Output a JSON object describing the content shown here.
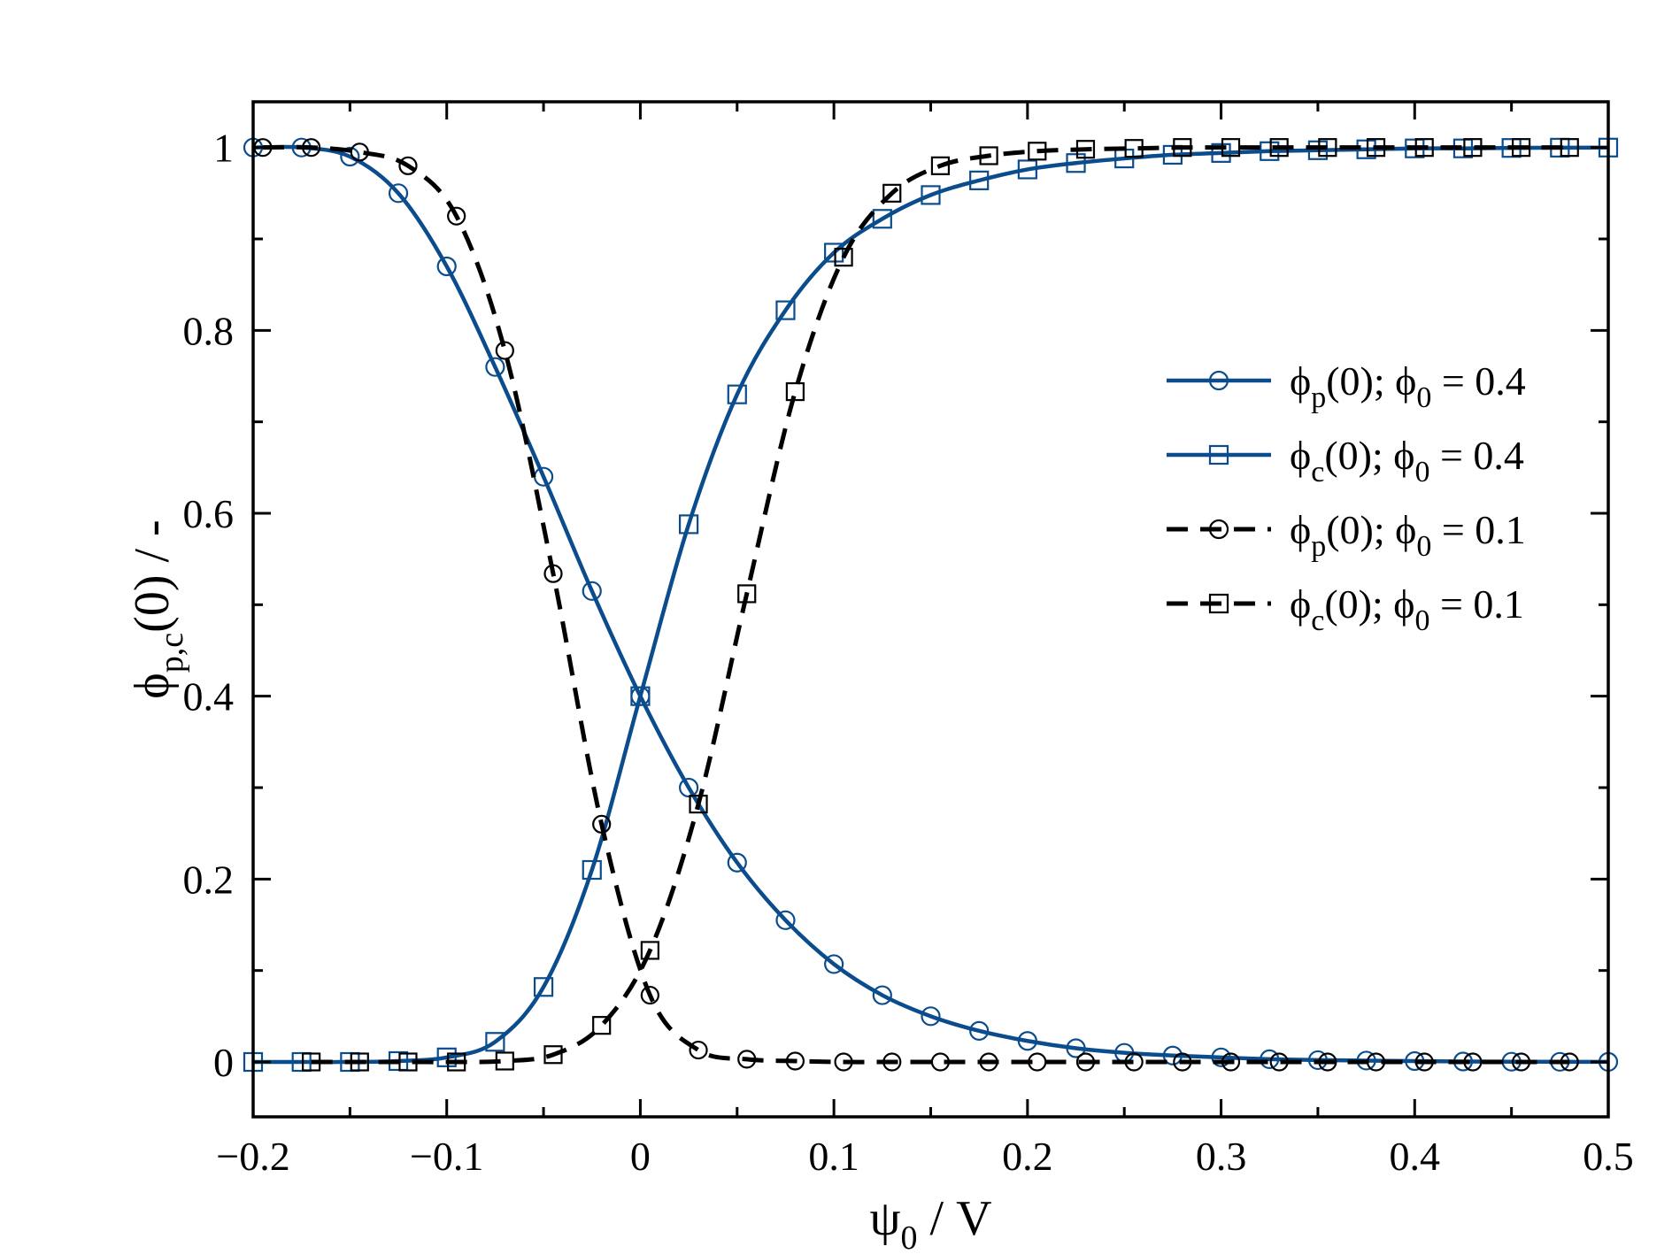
{
  "chart_data": {
    "type": "line",
    "xlabel": {
      "main": "ψ",
      "sub": "0",
      "tail": " / V"
    },
    "ylabel": {
      "main": "ϕ",
      "sub": "p,c",
      "tail": "(0) / -"
    },
    "xlim": [
      -0.2,
      0.5
    ],
    "ylim": [
      -0.06,
      1.05
    ],
    "xticks": [
      -0.2,
      -0.1,
      0,
      0.1,
      0.2,
      0.3,
      0.4,
      0.5
    ],
    "xtick_labels": [
      "−0.2",
      "−0.1",
      "0",
      "0.1",
      "0.2",
      "0.3",
      "0.4",
      "0.5"
    ],
    "yticks": [
      0,
      0.2,
      0.4,
      0.6,
      0.8,
      1
    ],
    "ytick_labels": [
      "0",
      "0.2",
      "0.4",
      "0.6",
      "0.8",
      "1"
    ],
    "grid": false,
    "legend_position": "right, upper-middle",
    "series": [
      {
        "name": "ϕp(0); ϕ0 = 0.4",
        "legend": {
          "a": "ϕ",
          "a_sub": "p",
          "b": "(0); ϕ",
          "b_sub": "0",
          "c": " = 0.4"
        },
        "color": "#0b4c8c",
        "line": "solid",
        "marker": "circle",
        "x": [
          -0.2,
          -0.175,
          -0.15,
          -0.125,
          -0.1,
          -0.075,
          -0.05,
          -0.025,
          0,
          0.025,
          0.05,
          0.075,
          0.1,
          0.125,
          0.15,
          0.175,
          0.2,
          0.225,
          0.25,
          0.275,
          0.3,
          0.325,
          0.35,
          0.375,
          0.4,
          0.425,
          0.45,
          0.475,
          0.5
        ],
        "y": [
          1.0,
          1.0,
          0.99,
          0.95,
          0.87,
          0.76,
          0.64,
          0.515,
          0.4,
          0.3,
          0.218,
          0.155,
          0.107,
          0.073,
          0.05,
          0.034,
          0.023,
          0.015,
          0.01,
          0.007,
          0.005,
          0.003,
          0.002,
          0.0015,
          0.001,
          0.0005,
          0.0003,
          0.0002,
          0.0001
        ]
      },
      {
        "name": "ϕc(0); ϕ0 = 0.4",
        "legend": {
          "a": "ϕ",
          "a_sub": "c",
          "b": "(0); ϕ",
          "b_sub": "0",
          "c": " = 0.4"
        },
        "color": "#0b4c8c",
        "line": "solid",
        "marker": "square",
        "x": [
          -0.2,
          -0.175,
          -0.15,
          -0.125,
          -0.1,
          -0.075,
          -0.05,
          -0.025,
          0,
          0.025,
          0.05,
          0.075,
          0.1,
          0.125,
          0.15,
          0.175,
          0.2,
          0.225,
          0.25,
          0.275,
          0.3,
          0.325,
          0.35,
          0.375,
          0.4,
          0.425,
          0.45,
          0.475,
          0.5
        ],
        "y": [
          0.0,
          0.0,
          0.0,
          0.001,
          0.005,
          0.022,
          0.082,
          0.21,
          0.4,
          0.588,
          0.73,
          0.822,
          0.885,
          0.922,
          0.948,
          0.964,
          0.976,
          0.983,
          0.988,
          0.992,
          0.994,
          0.996,
          0.997,
          0.998,
          0.999,
          0.999,
          0.9995,
          0.9998,
          0.9999
        ]
      },
      {
        "name": "ϕp(0); ϕ0 = 0.1",
        "legend": {
          "a": "ϕ",
          "a_sub": "p",
          "b": "(0); ϕ",
          "b_sub": "0",
          "c": " = 0.1"
        },
        "color": "#000000",
        "line": "dashed",
        "marker": "circle",
        "x": [
          -0.195,
          -0.17,
          -0.145,
          -0.12,
          -0.095,
          -0.07,
          -0.045,
          -0.02,
          0.005,
          0.03,
          0.055,
          0.08,
          0.105,
          0.13,
          0.155,
          0.18,
          0.205,
          0.23,
          0.255,
          0.28,
          0.305,
          0.33,
          0.355,
          0.38,
          0.405,
          0.43,
          0.455,
          0.48
        ],
        "y": [
          1.0,
          1.0,
          0.995,
          0.98,
          0.925,
          0.778,
          0.534,
          0.26,
          0.073,
          0.013,
          0.003,
          0.001,
          0.0,
          0.0,
          0.0,
          0.0,
          0.0,
          0.0,
          0.0,
          0.0,
          0.0,
          0.0,
          0.0,
          0.0,
          0.0,
          0.0,
          0.0,
          0.0
        ]
      },
      {
        "name": "ϕc(0); ϕ0 = 0.1",
        "legend": {
          "a": "ϕ",
          "a_sub": "c",
          "b": "(0); ϕ",
          "b_sub": "0",
          "c": " = 0.1"
        },
        "color": "#000000",
        "line": "dashed",
        "marker": "square",
        "x": [
          -0.17,
          -0.145,
          -0.12,
          -0.095,
          -0.07,
          -0.045,
          -0.02,
          0.005,
          0.03,
          0.055,
          0.08,
          0.105,
          0.13,
          0.155,
          0.18,
          0.205,
          0.23,
          0.255,
          0.28,
          0.305,
          0.33,
          0.355,
          0.38,
          0.405,
          0.43,
          0.455,
          0.48
        ],
        "y": [
          0.0,
          0.0,
          0.0,
          0.0,
          0.001,
          0.008,
          0.04,
          0.122,
          0.282,
          0.512,
          0.733,
          0.88,
          0.95,
          0.98,
          0.991,
          0.996,
          0.998,
          0.999,
          1.0,
          1.0,
          1.0,
          1.0,
          1.0,
          1.0,
          1.0,
          1.0,
          1.0
        ]
      }
    ]
  }
}
